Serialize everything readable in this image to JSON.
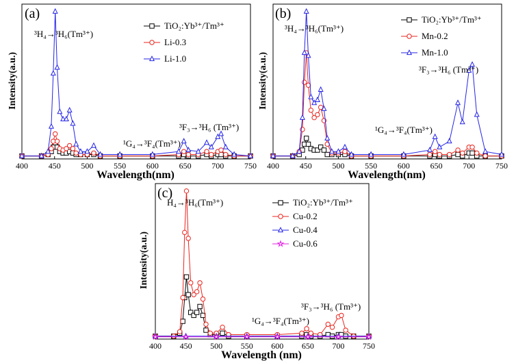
{
  "chart_data": [
    {
      "type": "line",
      "panel_label": "(a)",
      "xlabel": "Wavelength(nm)",
      "ylabel": "Intensity(a.u.)",
      "xlim": [
        400,
        750
      ],
      "ylim": [
        0,
        1.05
      ],
      "xticks": [
        400,
        450,
        500,
        550,
        600,
        650,
        700,
        750
      ],
      "legend_position": "top-right",
      "annotations": [
        {
          "text": "³H₄→³H₆(Tm³⁺)",
          "at": [
            470,
            0.98
          ]
        },
        {
          "text": "¹G₄→³F₄(Tm³⁺)",
          "at": [
            630,
            0.12
          ]
        },
        {
          "text": "³F₃→³H₆ (Tm³⁺)",
          "at": [
            700,
            0.26
          ]
        }
      ],
      "series": [
        {
          "name": "TiO₂:Yb³⁺/Tm³⁺",
          "color": "#000000",
          "marker": "square",
          "x": [
            400,
            430,
            440,
            445,
            448,
            451,
            454,
            458,
            463,
            468,
            473,
            478,
            483,
            490,
            500,
            510,
            520,
            550,
            600,
            640,
            648,
            655,
            670,
            683,
            690,
            700,
            705,
            712,
            725,
            750
          ],
          "y": [
            0.02,
            0.02,
            0.03,
            0.05,
            0.08,
            0.11,
            0.08,
            0.05,
            0.04,
            0.04,
            0.05,
            0.04,
            0.03,
            0.03,
            0.03,
            0.03,
            0.02,
            0.02,
            0.02,
            0.02,
            0.03,
            0.02,
            0.02,
            0.03,
            0.02,
            0.03,
            0.03,
            0.02,
            0.02,
            0.02
          ]
        },
        {
          "name": "Li-0.3",
          "color": "#e8231c",
          "marker": "circle",
          "x": [
            400,
            430,
            440,
            445,
            448,
            451,
            454,
            458,
            463,
            468,
            473,
            478,
            483,
            490,
            500,
            510,
            520,
            550,
            600,
            640,
            648,
            655,
            670,
            683,
            690,
            700,
            705,
            712,
            725,
            750
          ],
          "y": [
            0.02,
            0.02,
            0.03,
            0.07,
            0.12,
            0.17,
            0.12,
            0.07,
            0.06,
            0.07,
            0.09,
            0.07,
            0.04,
            0.03,
            0.03,
            0.04,
            0.02,
            0.02,
            0.02,
            0.03,
            0.05,
            0.03,
            0.03,
            0.05,
            0.03,
            0.05,
            0.06,
            0.03,
            0.02,
            0.02
          ]
        },
        {
          "name": "Li-1.0",
          "color": "#2323e6",
          "marker": "triangle",
          "x": [
            400,
            430,
            440,
            445,
            448,
            451,
            454,
            458,
            463,
            468,
            473,
            478,
            483,
            490,
            500,
            510,
            520,
            550,
            600,
            640,
            648,
            655,
            670,
            683,
            690,
            700,
            705,
            712,
            725,
            750
          ],
          "y": [
            0.02,
            0.02,
            0.05,
            0.22,
            0.58,
            1.0,
            0.62,
            0.32,
            0.27,
            0.27,
            0.33,
            0.24,
            0.1,
            0.05,
            0.05,
            0.09,
            0.03,
            0.03,
            0.03,
            0.05,
            0.12,
            0.06,
            0.05,
            0.11,
            0.08,
            0.15,
            0.17,
            0.08,
            0.03,
            0.02
          ]
        }
      ]
    },
    {
      "type": "line",
      "panel_label": "(b)",
      "xlabel": "Wavelength(nm)",
      "ylabel": "Intensity(a.u.)",
      "xlim": [
        400,
        750
      ],
      "ylim": [
        0,
        1.05
      ],
      "xticks": [
        400,
        450,
        500,
        550,
        600,
        650,
        700,
        750
      ],
      "legend_position": "top-right",
      "annotations": [
        {
          "text": "³H₄→³H₆(Tm³⁺)",
          "at": [
            470,
            0.98
          ]
        },
        {
          "text": "³F₃→³H₆ (Tm³⁺)",
          "at": [
            700,
            0.62
          ]
        },
        {
          "text": "¹G₄→³F₄(Tm³⁺)",
          "at": [
            600,
            0.22
          ]
        }
      ],
      "series": [
        {
          "name": "TiO₂:Yb³⁺/Tm³⁺",
          "color": "#000000",
          "marker": "square",
          "x": [
            400,
            430,
            440,
            445,
            448,
            451,
            454,
            458,
            463,
            468,
            473,
            478,
            483,
            490,
            500,
            510,
            520,
            550,
            600,
            640,
            648,
            655,
            670,
            683,
            690,
            700,
            705,
            712,
            725,
            750
          ],
          "y": [
            0.02,
            0.02,
            0.03,
            0.06,
            0.1,
            0.14,
            0.1,
            0.07,
            0.06,
            0.06,
            0.08,
            0.06,
            0.03,
            0.03,
            0.03,
            0.03,
            0.02,
            0.02,
            0.02,
            0.02,
            0.03,
            0.02,
            0.02,
            0.03,
            0.02,
            0.04,
            0.04,
            0.02,
            0.02,
            0.02
          ]
        },
        {
          "name": "Mn-0.2",
          "color": "#e8231c",
          "marker": "circle",
          "x": [
            400,
            430,
            440,
            445,
            448,
            451,
            454,
            458,
            463,
            468,
            473,
            478,
            483,
            490,
            500,
            510,
            520,
            550,
            600,
            640,
            648,
            655,
            670,
            683,
            690,
            700,
            705,
            712,
            725,
            750
          ],
          "y": [
            0.02,
            0.02,
            0.05,
            0.2,
            0.52,
            0.72,
            0.5,
            0.33,
            0.28,
            0.3,
            0.35,
            0.26,
            0.1,
            0.04,
            0.04,
            0.05,
            0.02,
            0.02,
            0.02,
            0.03,
            0.05,
            0.03,
            0.03,
            0.06,
            0.04,
            0.08,
            0.08,
            0.04,
            0.02,
            0.02
          ]
        },
        {
          "name": "Mn-1.0",
          "color": "#2323e6",
          "marker": "triangle",
          "x": [
            400,
            430,
            440,
            445,
            448,
            451,
            454,
            458,
            463,
            468,
            473,
            478,
            483,
            490,
            500,
            510,
            520,
            550,
            600,
            640,
            648,
            655,
            670,
            683,
            690,
            700,
            705,
            712,
            725,
            750
          ],
          "y": [
            0.02,
            0.02,
            0.05,
            0.28,
            0.72,
            1.0,
            0.7,
            0.42,
            0.38,
            0.4,
            0.47,
            0.34,
            0.14,
            0.05,
            0.05,
            0.08,
            0.03,
            0.03,
            0.03,
            0.06,
            0.15,
            0.08,
            0.12,
            0.38,
            0.25,
            0.6,
            0.64,
            0.3,
            0.05,
            0.03
          ]
        }
      ]
    },
    {
      "type": "line",
      "panel_label": "(c)",
      "xlabel": "Wavelength (nm)",
      "ylabel": "Intensity(a.u.)",
      "xlim": [
        400,
        750
      ],
      "ylim": [
        0,
        1.05
      ],
      "xticks": [
        400,
        450,
        500,
        550,
        600,
        650,
        700,
        750
      ],
      "legend_position": "top-right",
      "annotations": [
        {
          "text": "H₄→³H₆(Tm³⁺)",
          "at": [
            470,
            0.98
          ]
        },
        {
          "text": "³F₃→³H₆ (Tm³⁺)",
          "at": [
            700,
            0.26
          ]
        },
        {
          "text": "¹G₄→³F₄(Tm³⁺)",
          "at": [
            615,
            0.12
          ]
        }
      ],
      "series": [
        {
          "name": "TiO₂:Yb³⁺/Tm³⁺",
          "color": "#000000",
          "marker": "square",
          "x": [
            400,
            430,
            440,
            445,
            448,
            451,
            454,
            458,
            463,
            468,
            473,
            478,
            483,
            490,
            500,
            510,
            520,
            550,
            600,
            640,
            648,
            655,
            670,
            683,
            690,
            700,
            705,
            712,
            725,
            750
          ],
          "y": [
            0.02,
            0.02,
            0.04,
            0.12,
            0.28,
            0.42,
            0.3,
            0.18,
            0.16,
            0.18,
            0.22,
            0.16,
            0.06,
            0.03,
            0.03,
            0.04,
            0.02,
            0.02,
            0.02,
            0.02,
            0.03,
            0.02,
            0.02,
            0.03,
            0.02,
            0.03,
            0.03,
            0.02,
            0.02,
            0.02
          ]
        },
        {
          "name": "Cu-0.2",
          "color": "#e8231c",
          "marker": "circle",
          "x": [
            400,
            430,
            440,
            445,
            448,
            451,
            454,
            458,
            463,
            468,
            473,
            478,
            483,
            490,
            500,
            510,
            520,
            550,
            600,
            640,
            648,
            655,
            670,
            683,
            690,
            700,
            705,
            712,
            725,
            750
          ],
          "y": [
            0.02,
            0.02,
            0.05,
            0.28,
            0.72,
            1.0,
            0.68,
            0.38,
            0.3,
            0.32,
            0.38,
            0.27,
            0.1,
            0.04,
            0.04,
            0.08,
            0.03,
            0.03,
            0.03,
            0.04,
            0.07,
            0.04,
            0.03,
            0.1,
            0.08,
            0.15,
            0.16,
            0.06,
            0.02,
            0.02
          ]
        },
        {
          "name": "Cu-0.4",
          "color": "#2323e6",
          "marker": "triangle",
          "x": [
            400,
            450,
            500,
            550,
            600,
            650,
            700,
            750
          ],
          "y": [
            0.02,
            0.02,
            0.02,
            0.02,
            0.02,
            0.02,
            0.02,
            0.02
          ]
        },
        {
          "name": "Cu-0.6",
          "color": "#e020e0",
          "marker": "star",
          "x": [
            400,
            450,
            500,
            550,
            600,
            650,
            700,
            750
          ],
          "y": [
            0.015,
            0.015,
            0.015,
            0.015,
            0.015,
            0.015,
            0.015,
            0.015
          ]
        }
      ]
    }
  ]
}
